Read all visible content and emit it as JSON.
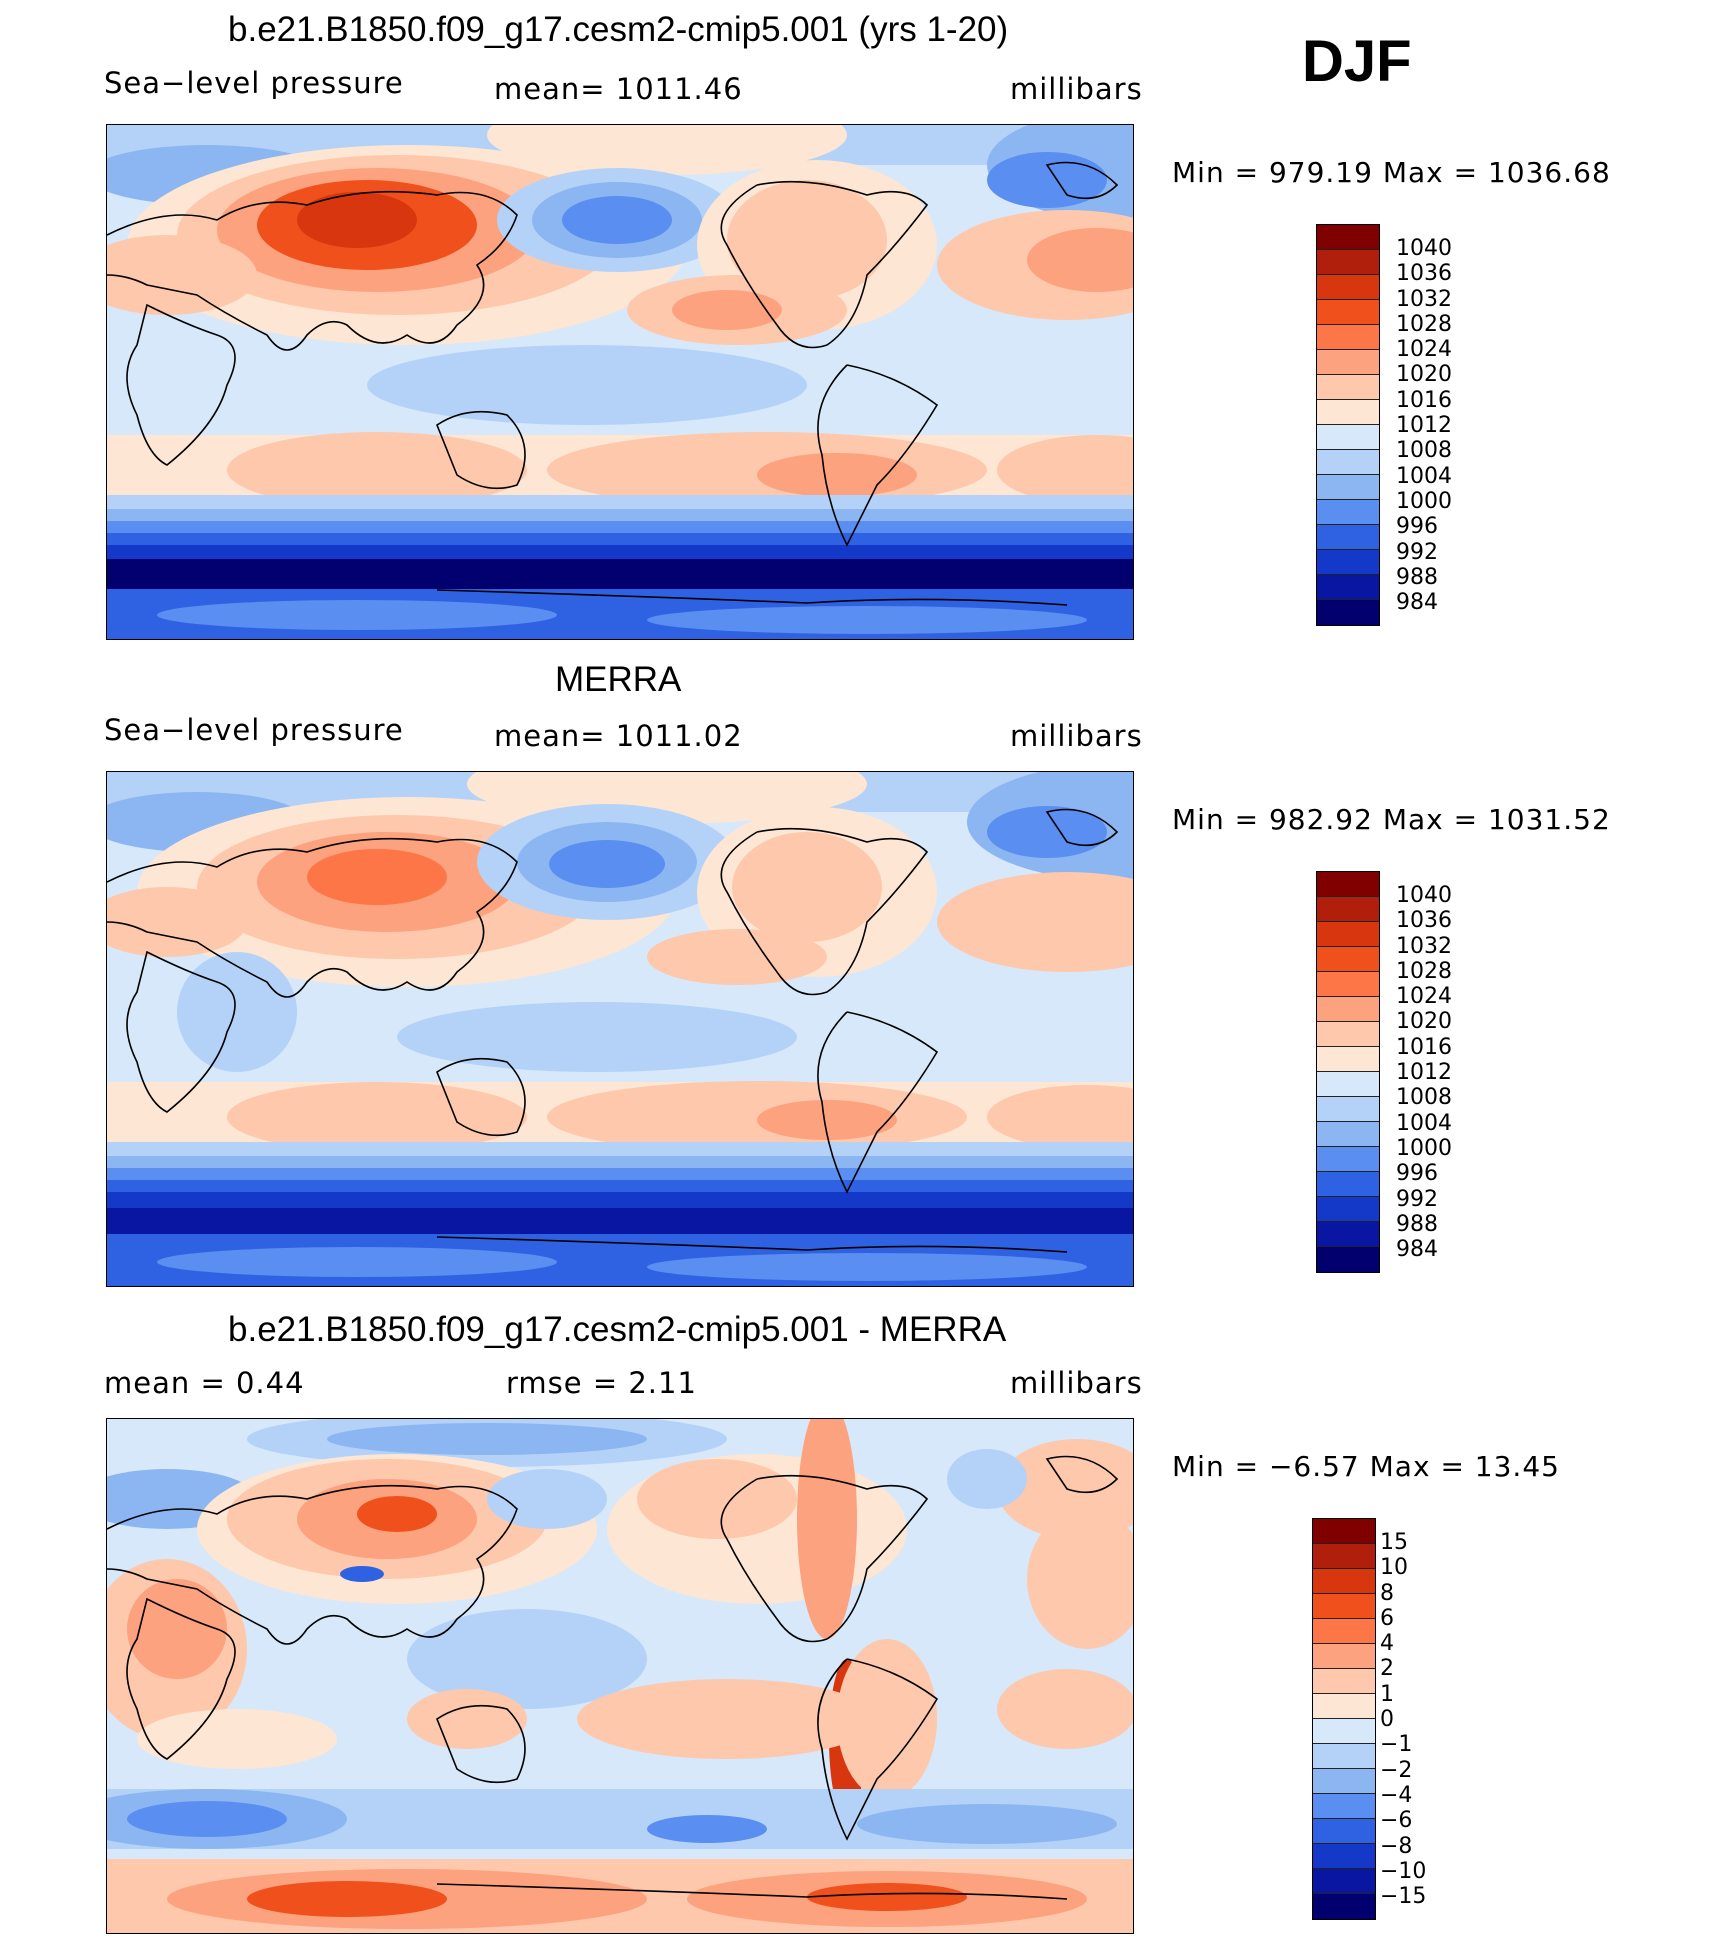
{
  "season": "DJF",
  "panels": [
    {
      "title": "b.e21.B1850.f09_g17.cesm2-cmip5.001 (yrs 1-20)",
      "left": "Sea−level  pressure",
      "mid": "mean=  1011.46",
      "right": "millibars",
      "minmax": "Min  =  979.19  Max  =  1036.68",
      "colorbar_labels": [
        "1040",
        "1036",
        "1032",
        "1028",
        "1024",
        "1020",
        "1016",
        "1012",
        "1008",
        "1004",
        "1000",
        "996",
        "992",
        "988",
        "984"
      ]
    },
    {
      "title": "MERRA",
      "left": "Sea−level  pressure",
      "mid": "mean=  1011.02",
      "right": "millibars",
      "minmax": "Min  =  982.92  Max  =  1031.52",
      "colorbar_labels": [
        "1040",
        "1036",
        "1032",
        "1028",
        "1024",
        "1020",
        "1016",
        "1012",
        "1008",
        "1004",
        "1000",
        "996",
        "992",
        "988",
        "984"
      ]
    },
    {
      "title": "b.e21.B1850.f09_g17.cesm2-cmip5.001 - MERRA",
      "left": "mean  =      0.44",
      "mid": "rmse  =      2.11",
      "right": "millibars",
      "minmax": "Min  =    −6.57  Max  =     13.45",
      "colorbar_labels": [
        "15",
        "10",
        "8",
        "6",
        "4",
        "2",
        "1",
        "0",
        "−1",
        "−2",
        "−4",
        "−6",
        "−8",
        "−10",
        "−15"
      ]
    }
  ],
  "colors": {
    "slp_scale": [
      "#800000",
      "#b01e0c",
      "#d8360f",
      "#f0501c",
      "#fc7648",
      "#fca27e",
      "#fdc8ac",
      "#fde6d4",
      "#d6e8fa",
      "#b4d2f8",
      "#8cb6f2",
      "#5a8ef0",
      "#2e62e2",
      "#1438c8",
      "#0816a2",
      "#02006e"
    ],
    "diff_scale": [
      "#800000",
      "#b01e0c",
      "#d8360f",
      "#f0501c",
      "#fc7648",
      "#fca27e",
      "#fdc8ac",
      "#fde6d4",
      "#d6e8fa",
      "#b4d2f8",
      "#8cb6f2",
      "#5a8ef0",
      "#2e62e2",
      "#1438c8",
      "#0816a2",
      "#02006e"
    ]
  }
}
